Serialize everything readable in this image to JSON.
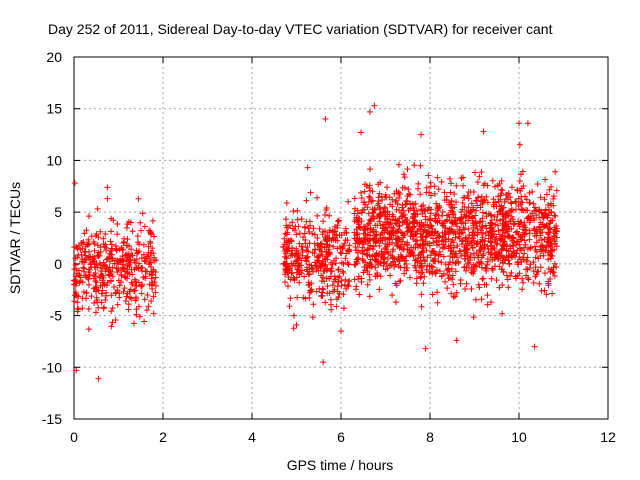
{
  "chart_data": {
    "type": "scatter",
    "title": "Day 252 of 2011, Sidereal Day-to-day VTEC variation (SDTVAR) for receiver cant",
    "xlabel": "GPS time / hours",
    "ylabel": "SDTVAR / TECUs",
    "xlim": [
      0,
      12
    ],
    "ylim": [
      -15,
      20
    ],
    "xticks": [
      "0",
      "2",
      "4",
      "6",
      "8",
      "10",
      "12"
    ],
    "yticks": [
      "20",
      "15",
      "10",
      "5",
      "0",
      "-5",
      "-10",
      "-15"
    ],
    "grid": true,
    "marker": "+",
    "color": "#ff0000",
    "series": [
      {
        "name": "SDTVAR",
        "segments": [
          {
            "x_start": 0.0,
            "x_end": 1.85,
            "y_mean": -0.5,
            "y_spread": 3.2,
            "count": 420
          },
          {
            "x_start": 4.7,
            "x_end": 6.2,
            "y_mean": 0.5,
            "y_spread": 3.0,
            "count": 360
          },
          {
            "x_start": 6.3,
            "x_end": 10.85,
            "y_mean": 2.8,
            "y_spread": 3.6,
            "count": 1500
          }
        ],
        "extremes": [
          {
            "x": 0.02,
            "y": 7.8
          },
          {
            "x": 0.05,
            "y": -10.3
          },
          {
            "x": 0.55,
            "y": -11.1
          },
          {
            "x": 0.75,
            "y": 7.4
          },
          {
            "x": 1.45,
            "y": 6.3
          },
          {
            "x": 5.65,
            "y": 14.0
          },
          {
            "x": 5.6,
            "y": -9.5
          },
          {
            "x": 6.65,
            "y": 14.7
          },
          {
            "x": 6.75,
            "y": 15.3
          },
          {
            "x": 6.45,
            "y": 12.7
          },
          {
            "x": 7.8,
            "y": 12.5
          },
          {
            "x": 7.9,
            "y": -8.2
          },
          {
            "x": 9.2,
            "y": 12.8
          },
          {
            "x": 10.0,
            "y": 13.6
          },
          {
            "x": 10.2,
            "y": 13.6
          },
          {
            "x": 10.35,
            "y": -8.0
          },
          {
            "x": 5.25,
            "y": 9.3
          },
          {
            "x": 5.0,
            "y": -5.9
          },
          {
            "x": 6.0,
            "y": -6.5
          },
          {
            "x": 8.6,
            "y": -7.4
          }
        ]
      }
    ]
  }
}
